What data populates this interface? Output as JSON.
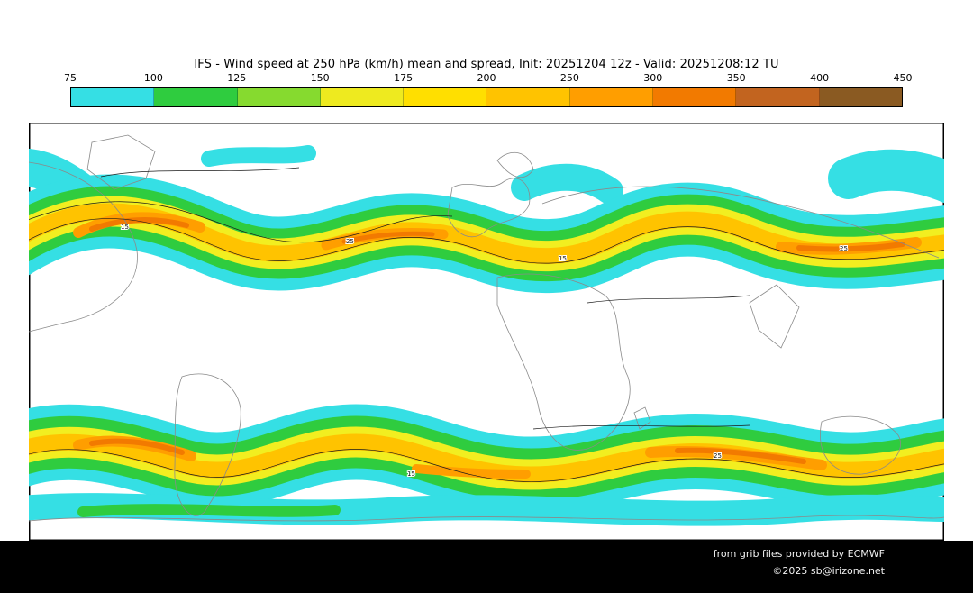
{
  "title": "IFS - Wind speed at 250 hPa (km/h) mean and spread, Init: 20251204 12z - Valid: 20251208:12 TU",
  "colorbar": {
    "unit": "km/h",
    "ticks": [
      "75",
      "100",
      "125",
      "150",
      "175",
      "200",
      "250",
      "300",
      "350",
      "400",
      "450"
    ],
    "colors": [
      "#35dfe4",
      "#2fcc3f",
      "#86da2f",
      "#eeea1f",
      "#ffdf00",
      "#ffc300",
      "#ff9e00",
      "#f27a00",
      "#c2641f",
      "#8a5a22"
    ]
  },
  "map": {
    "contour_labels": [
      "15",
      "25",
      "15",
      "25",
      "15",
      "25"
    ],
    "band_colors": {
      "cyan": "#35dfe4",
      "green": "#2fcc3f",
      "yellow": "#f2ee20",
      "gold": "#ffc300",
      "orange": "#ff9e00",
      "deep_orange": "#f27a00"
    },
    "coastline_color": "#8a8a8a",
    "contour_color": "#1a1a1a"
  },
  "credits": {
    "line1": "from grib files provided by ECMWF",
    "line2": "©2025 sb@irizone.net"
  },
  "chart_data": {
    "type": "heatmap",
    "title": "IFS - Wind speed at 250 hPa (km/h) mean and spread, Init: 20251204 12z - Valid: 20251208:12 TU",
    "field": "Wind speed at 250 hPa",
    "unit": "km/h",
    "statistic": "mean and spread",
    "model": "IFS",
    "init": "20251204 12z",
    "valid": "20251208:12 TU",
    "legend_position": "top",
    "scale_ticks": [
      75,
      100,
      125,
      150,
      175,
      200,
      250,
      300,
      350,
      400,
      450
    ],
    "scale_colors": [
      "#35dfe4",
      "#2fcc3f",
      "#86da2f",
      "#eeea1f",
      "#ffdf00",
      "#ffc300",
      "#ff9e00",
      "#f27a00",
      "#c2641f",
      "#8a5a22"
    ],
    "spread_contour_labels": [
      15,
      25
    ],
    "notes": "Global world map: filled colors show ensemble-mean 250 hPa wind speed (jet streams in both hemispheres); thin black contours show ensemble spread."
  }
}
